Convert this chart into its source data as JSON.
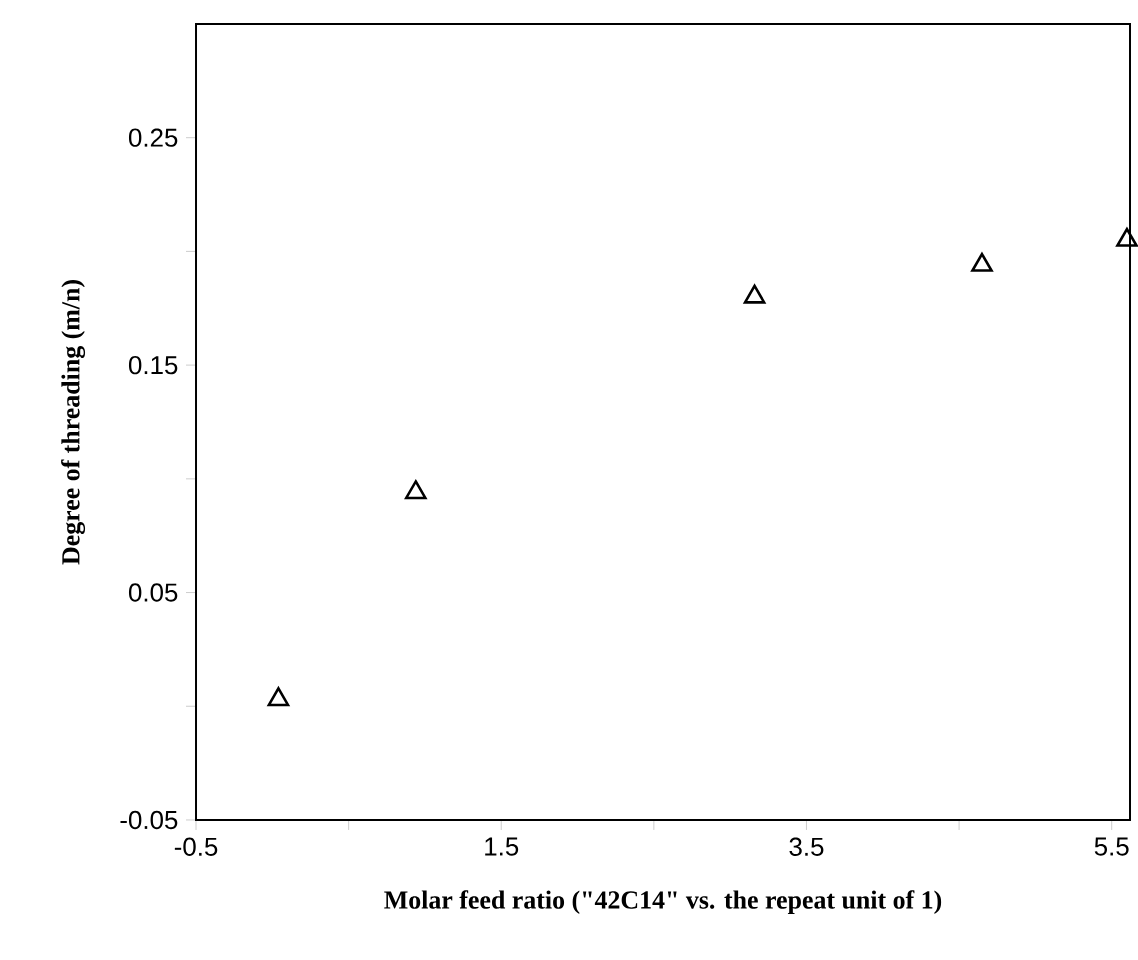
{
  "chart_data": {
    "type": "scatter",
    "xlabel": "Molar feed ratio (\"42C14\" vs. the repeat unit of 1)",
    "ylabel": "Degree of threading (m/n)",
    "x": [
      0.04,
      0.94,
      3.16,
      4.65,
      5.6
    ],
    "values": [
      0.003,
      0.094,
      0.18,
      0.194,
      0.205
    ],
    "color": "#000000",
    "marker": "triangle",
    "grid": false,
    "xlim": [
      -0.5,
      5.62
    ],
    "ylim": [
      -0.05,
      0.3
    ],
    "xticks": [
      -0.5,
      {
        "value": 0.5,
        "label": null
      },
      1.5,
      {
        "value": 2.5,
        "label": null
      },
      3.5,
      {
        "value": 4.5,
        "label": null
      },
      5.5
    ],
    "yticks": [
      -0.05,
      {
        "value": 0,
        "label": null
      },
      0.05,
      {
        "value": 0.1,
        "label": null
      },
      0.15,
      {
        "value": 0.2,
        "label": null
      },
      0.25
    ]
  }
}
